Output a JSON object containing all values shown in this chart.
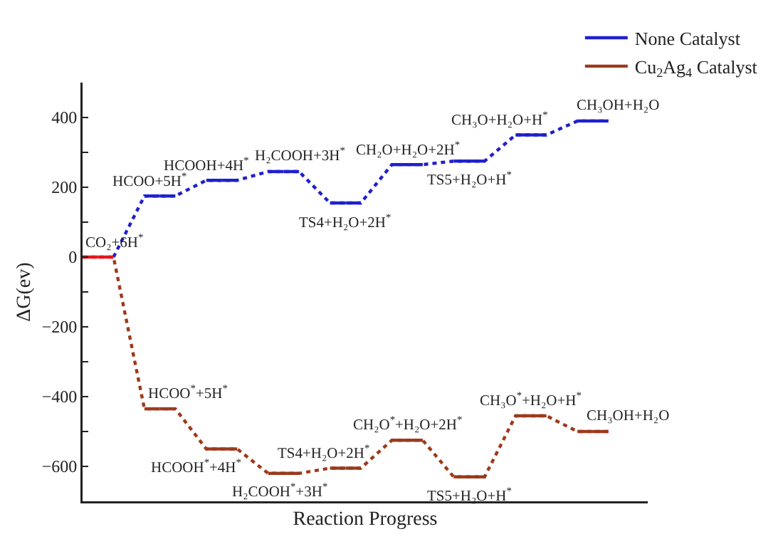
{
  "chart_data": {
    "type": "line",
    "xlabel": "Reaction Progress",
    "ylabel": "ΔG(ev)",
    "categories": [
      null,
      null,
      null,
      null,
      null,
      null,
      null,
      null,
      null,
      null,
      null,
      null,
      null,
      null,
      null,
      null,
      null,
      null
    ],
    "ylim": [
      -700,
      500
    ],
    "yticks": [
      {
        "value": -700,
        "label": null
      },
      {
        "value": -600,
        "label": "−600"
      },
      {
        "value": -500,
        "label": null
      },
      {
        "value": -400,
        "label": "−400"
      },
      {
        "value": -300,
        "label": null
      },
      {
        "value": -200,
        "label": "−200"
      },
      {
        "value": -100,
        "label": null
      },
      0,
      {
        "value": 100,
        "label": null
      },
      200,
      {
        "value": 300,
        "label": null
      },
      400
    ],
    "tick_labels": "y",
    "grid": false,
    "legend": "top right",
    "marker": "none",
    "series": [
      {
        "name": "None Catalyst",
        "color": "#1f1fd0",
        "line_style": "dotted",
        "values": [
          null,
          0,
          175,
          175,
          220,
          220,
          245,
          245,
          155,
          155,
          265,
          265,
          275,
          275,
          350,
          350,
          390,
          390
        ]
      },
      {
        "name": "Cu$_{2}$Ag$_{4}$ Catalyst",
        "color": "#9c3a1c",
        "line_style": "dotted",
        "colors": [
          "#e8141c",
          "#e8141c",
          "#9c3a1c",
          "#9c3a1c",
          "#9c3a1c",
          "#9c3a1c",
          "#9c3a1c",
          "#9c3a1c",
          "#9c3a1c",
          "#9c3a1c",
          "#9c3a1c",
          "#9c3a1c",
          "#9c3a1c",
          "#9c3a1c",
          "#9c3a1c",
          "#9c3a1c",
          "#9c3a1c",
          "#9c3a1c"
        ],
        "values": [
          0,
          0,
          -435,
          -435,
          -550,
          -550,
          -620,
          -620,
          -605,
          -605,
          -525,
          -525,
          -630,
          -630,
          -455,
          -455,
          -500,
          -500
        ]
      }
    ],
    "annotations": [
      "CO₂+6H$^{*}$",
      "HCOO+5H$^{*}$",
      "HCOOH+4H$^{*}$",
      "H₂COOH+3H$^{*}$",
      "TS4+H₂O+2H$^{*}$",
      "CH₂O+H₂O+2H$^{*}$",
      "TS5+H₂O+H$^{*}$",
      "CH₃O+H₂O+H$^{*}$",
      "CH₃OH+H₂O",
      "HCOO$^{*}$+5H$^{*}$",
      "HCOOH$^{*}$+4H$^{*}$",
      "H₂COOH$^{*}$+3H$^{*}$",
      "TS4+H₂O+2H$^{*}$",
      "CH₂O$^{*}$+H₂O+2H$^{*}$",
      "TS5+H₂O+H$^{*}$",
      "CH₃O$^{*}$+H₂O+H$^{*}$",
      "CH₃OH+H₂O"
    ]
  }
}
